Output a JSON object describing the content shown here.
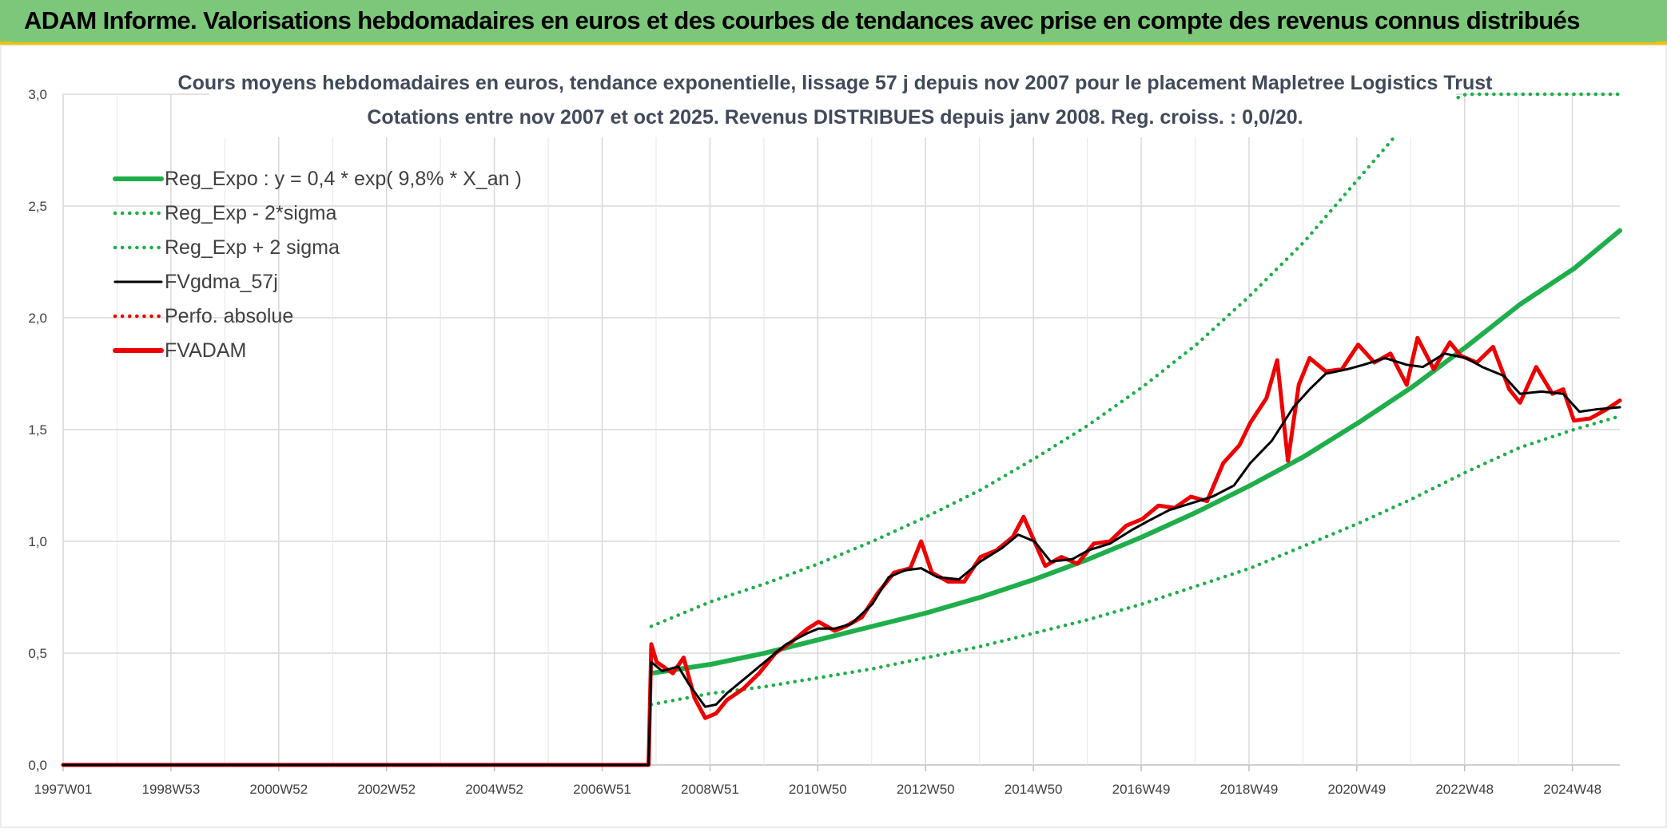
{
  "banner": {
    "title": "ADAM Informe. Valorisations hebdomadaires en euros et des courbes de tendances avec prise en compte des revenus connus distribués"
  },
  "colors": {
    "banner_bg": "#7dc77a",
    "accent_yellow": "#f2c200",
    "green": "#1fae4b",
    "black": "#000000",
    "red": "#ee0000",
    "grid": "#d9d9d9"
  },
  "chart_data": {
    "type": "line",
    "title": "Cours moyens hebdomadaires en euros, tendance exponentielle, lissage 57 j depuis nov 2007 pour le placement Mapletree Logistics Trust",
    "subtitle": "Cotations entre nov 2007 et oct 2025. Revenus DISTRIBUES depuis janv 2008. Reg. croiss. : 0,0/20.",
    "xlabel": "",
    "ylabel": "",
    "ylim": [
      0,
      3
    ],
    "y_ticks": [
      "0,0",
      "0,5",
      "1,0",
      "1,5",
      "2,0",
      "2,5",
      "3,0"
    ],
    "x_ticks": [
      "1997W01",
      "1998W53",
      "2000W52",
      "2002W52",
      "2004W52",
      "2006W51",
      "2008W51",
      "2010W50",
      "2012W50",
      "2014W50",
      "2016W49",
      "2018W49",
      "2020W49",
      "2022W48",
      "2024W48"
    ],
    "xlim": [
      1997.0,
      2025.85
    ],
    "grid": true,
    "legend_position": "top-left",
    "series": [
      {
        "name": "Reg_Expo : y = 0,4 * exp( 9,8% *  X_an )",
        "style": "solid-thick",
        "color": "#1fae4b",
        "x": [
          2007.9,
          2009,
          2010,
          2011,
          2012,
          2013,
          2014,
          2015,
          2016,
          2017,
          2018,
          2019,
          2020,
          2021,
          2022,
          2023,
          2024,
          2025,
          2025.85
        ],
        "y": [
          0.41,
          0.45,
          0.5,
          0.56,
          0.62,
          0.68,
          0.75,
          0.83,
          0.92,
          1.02,
          1.13,
          1.25,
          1.38,
          1.53,
          1.69,
          1.87,
          2.06,
          2.22,
          2.39
        ]
      },
      {
        "name": "Reg_Exp - 2*sigma",
        "style": "dotted",
        "color": "#1fae4b",
        "x": [
          2007.9,
          2009,
          2010,
          2011,
          2012,
          2013,
          2014,
          2015,
          2016,
          2017,
          2018,
          2019,
          2020,
          2021,
          2022,
          2023,
          2024,
          2025,
          2025.85
        ],
        "y": [
          0.27,
          0.32,
          0.35,
          0.39,
          0.43,
          0.48,
          0.53,
          0.59,
          0.65,
          0.72,
          0.8,
          0.88,
          0.98,
          1.08,
          1.19,
          1.31,
          1.42,
          1.5,
          1.56
        ]
      },
      {
        "name": "Reg_Exp + 2 sigma",
        "style": "dotted",
        "color": "#1fae4b",
        "x": [
          2007.9,
          2009,
          2010,
          2011,
          2012,
          2013,
          2014,
          2015,
          2016,
          2017,
          2018,
          2019,
          2020,
          2021,
          2022,
          2023,
          2024,
          2025,
          2025.85
        ],
        "y": [
          0.62,
          0.73,
          0.81,
          0.9,
          1.0,
          1.11,
          1.23,
          1.37,
          1.52,
          1.69,
          1.88,
          2.1,
          2.34,
          2.62,
          2.9,
          3.0,
          3.0,
          3.0,
          3.0
        ]
      },
      {
        "name": "FVgdma_57j",
        "style": "solid",
        "color": "#000000",
        "x": [
          1997.0,
          2007.85,
          2007.9,
          2008.1,
          2008.4,
          2008.6,
          2008.9,
          2009.1,
          2009.3,
          2009.6,
          2010.0,
          2010.4,
          2010.8,
          2011.0,
          2011.3,
          2011.6,
          2012.0,
          2012.3,
          2012.6,
          2012.9,
          2013.2,
          2013.6,
          2014.0,
          2014.4,
          2014.7,
          2015.0,
          2015.3,
          2015.7,
          2016.0,
          2016.4,
          2016.8,
          2017.1,
          2017.5,
          2017.9,
          2018.3,
          2018.7,
          2019.0,
          2019.4,
          2019.8,
          2020.1,
          2020.4,
          2020.8,
          2021.1,
          2021.5,
          2021.9,
          2022.2,
          2022.6,
          2023.0,
          2023.3,
          2023.7,
          2024.0,
          2024.4,
          2024.8,
          2025.1,
          2025.4,
          2025.85
        ],
        "y": [
          0.0,
          0.0,
          0.46,
          0.42,
          0.44,
          0.36,
          0.26,
          0.27,
          0.32,
          0.38,
          0.46,
          0.54,
          0.59,
          0.61,
          0.61,
          0.63,
          0.72,
          0.84,
          0.87,
          0.88,
          0.84,
          0.83,
          0.91,
          0.97,
          1.03,
          1.0,
          0.91,
          0.92,
          0.96,
          0.99,
          1.05,
          1.09,
          1.14,
          1.17,
          1.2,
          1.25,
          1.35,
          1.45,
          1.6,
          1.68,
          1.75,
          1.77,
          1.79,
          1.82,
          1.79,
          1.78,
          1.84,
          1.82,
          1.78,
          1.74,
          1.66,
          1.67,
          1.66,
          1.58,
          1.59,
          1.6
        ]
      },
      {
        "name": "Perfo. absolue",
        "style": "dotted",
        "color": "#ee0000",
        "x": [
          1997.0,
          2007.85,
          2007.9,
          2008.0,
          2008.3,
          2008.5,
          2008.7,
          2008.9,
          2009.1,
          2009.3,
          2009.6,
          2009.9,
          2010.2,
          2010.5,
          2010.8,
          2011.0,
          2011.3,
          2011.5,
          2011.8,
          2012.1,
          2012.4,
          2012.7,
          2012.9,
          2013.1,
          2013.4,
          2013.7,
          2014.0,
          2014.3,
          2014.6,
          2014.8,
          2015.0,
          2015.2,
          2015.5,
          2015.8,
          2016.1,
          2016.4,
          2016.7,
          2017.0,
          2017.3,
          2017.6,
          2017.9,
          2018.2,
          2018.5,
          2018.8,
          2019.0,
          2019.3,
          2019.5,
          2019.7,
          2019.9,
          2020.1,
          2020.4,
          2020.7,
          2021.0,
          2021.3,
          2021.6,
          2021.9,
          2022.1,
          2022.4,
          2022.7,
          2022.9,
          2023.2,
          2023.5,
          2023.8,
          2024.0,
          2024.3,
          2024.6,
          2024.8,
          2025.0,
          2025.3,
          2025.6,
          2025.85
        ],
        "y": [
          0.0,
          0.0,
          0.54,
          0.46,
          0.41,
          0.48,
          0.3,
          0.21,
          0.23,
          0.29,
          0.34,
          0.41,
          0.5,
          0.55,
          0.61,
          0.64,
          0.6,
          0.62,
          0.66,
          0.77,
          0.86,
          0.88,
          1.0,
          0.86,
          0.82,
          0.82,
          0.93,
          0.96,
          1.02,
          1.11,
          1.0,
          0.89,
          0.93,
          0.9,
          0.99,
          1.0,
          1.07,
          1.1,
          1.16,
          1.15,
          1.2,
          1.18,
          1.35,
          1.43,
          1.53,
          1.64,
          1.81,
          1.36,
          1.7,
          1.82,
          1.76,
          1.77,
          1.88,
          1.8,
          1.84,
          1.7,
          1.91,
          1.77,
          1.89,
          1.83,
          1.8,
          1.87,
          1.68,
          1.62,
          1.78,
          1.66,
          1.68,
          1.54,
          1.55,
          1.59,
          1.63
        ]
      },
      {
        "name": "FVADAM",
        "style": "solid-thick",
        "color": "#ee0000",
        "x": [
          1997.0,
          2007.85,
          2007.9,
          2008.0,
          2008.3,
          2008.5,
          2008.7,
          2008.9,
          2009.1,
          2009.3,
          2009.6,
          2009.9,
          2010.2,
          2010.5,
          2010.8,
          2011.0,
          2011.3,
          2011.5,
          2011.8,
          2012.1,
          2012.4,
          2012.7,
          2012.9,
          2013.1,
          2013.4,
          2013.7,
          2014.0,
          2014.3,
          2014.6,
          2014.8,
          2015.0,
          2015.2,
          2015.5,
          2015.8,
          2016.1,
          2016.4,
          2016.7,
          2017.0,
          2017.3,
          2017.6,
          2017.9,
          2018.2,
          2018.5,
          2018.8,
          2019.0,
          2019.3,
          2019.5,
          2019.7,
          2019.9,
          2020.1,
          2020.4,
          2020.7,
          2021.0,
          2021.3,
          2021.6,
          2021.9,
          2022.1,
          2022.4,
          2022.7,
          2022.9,
          2023.2,
          2023.5,
          2023.8,
          2024.0,
          2024.3,
          2024.6,
          2024.8,
          2025.0,
          2025.3,
          2025.6,
          2025.85
        ],
        "y": [
          0.0,
          0.0,
          0.54,
          0.46,
          0.41,
          0.48,
          0.3,
          0.21,
          0.23,
          0.29,
          0.34,
          0.41,
          0.5,
          0.55,
          0.61,
          0.64,
          0.6,
          0.62,
          0.66,
          0.77,
          0.86,
          0.88,
          1.0,
          0.86,
          0.82,
          0.82,
          0.93,
          0.96,
          1.02,
          1.11,
          1.0,
          0.89,
          0.93,
          0.9,
          0.99,
          1.0,
          1.07,
          1.1,
          1.16,
          1.15,
          1.2,
          1.18,
          1.35,
          1.43,
          1.53,
          1.64,
          1.81,
          1.36,
          1.7,
          1.82,
          1.76,
          1.77,
          1.88,
          1.8,
          1.84,
          1.7,
          1.91,
          1.77,
          1.89,
          1.83,
          1.8,
          1.87,
          1.68,
          1.62,
          1.78,
          1.66,
          1.68,
          1.54,
          1.55,
          1.59,
          1.63
        ]
      }
    ]
  }
}
